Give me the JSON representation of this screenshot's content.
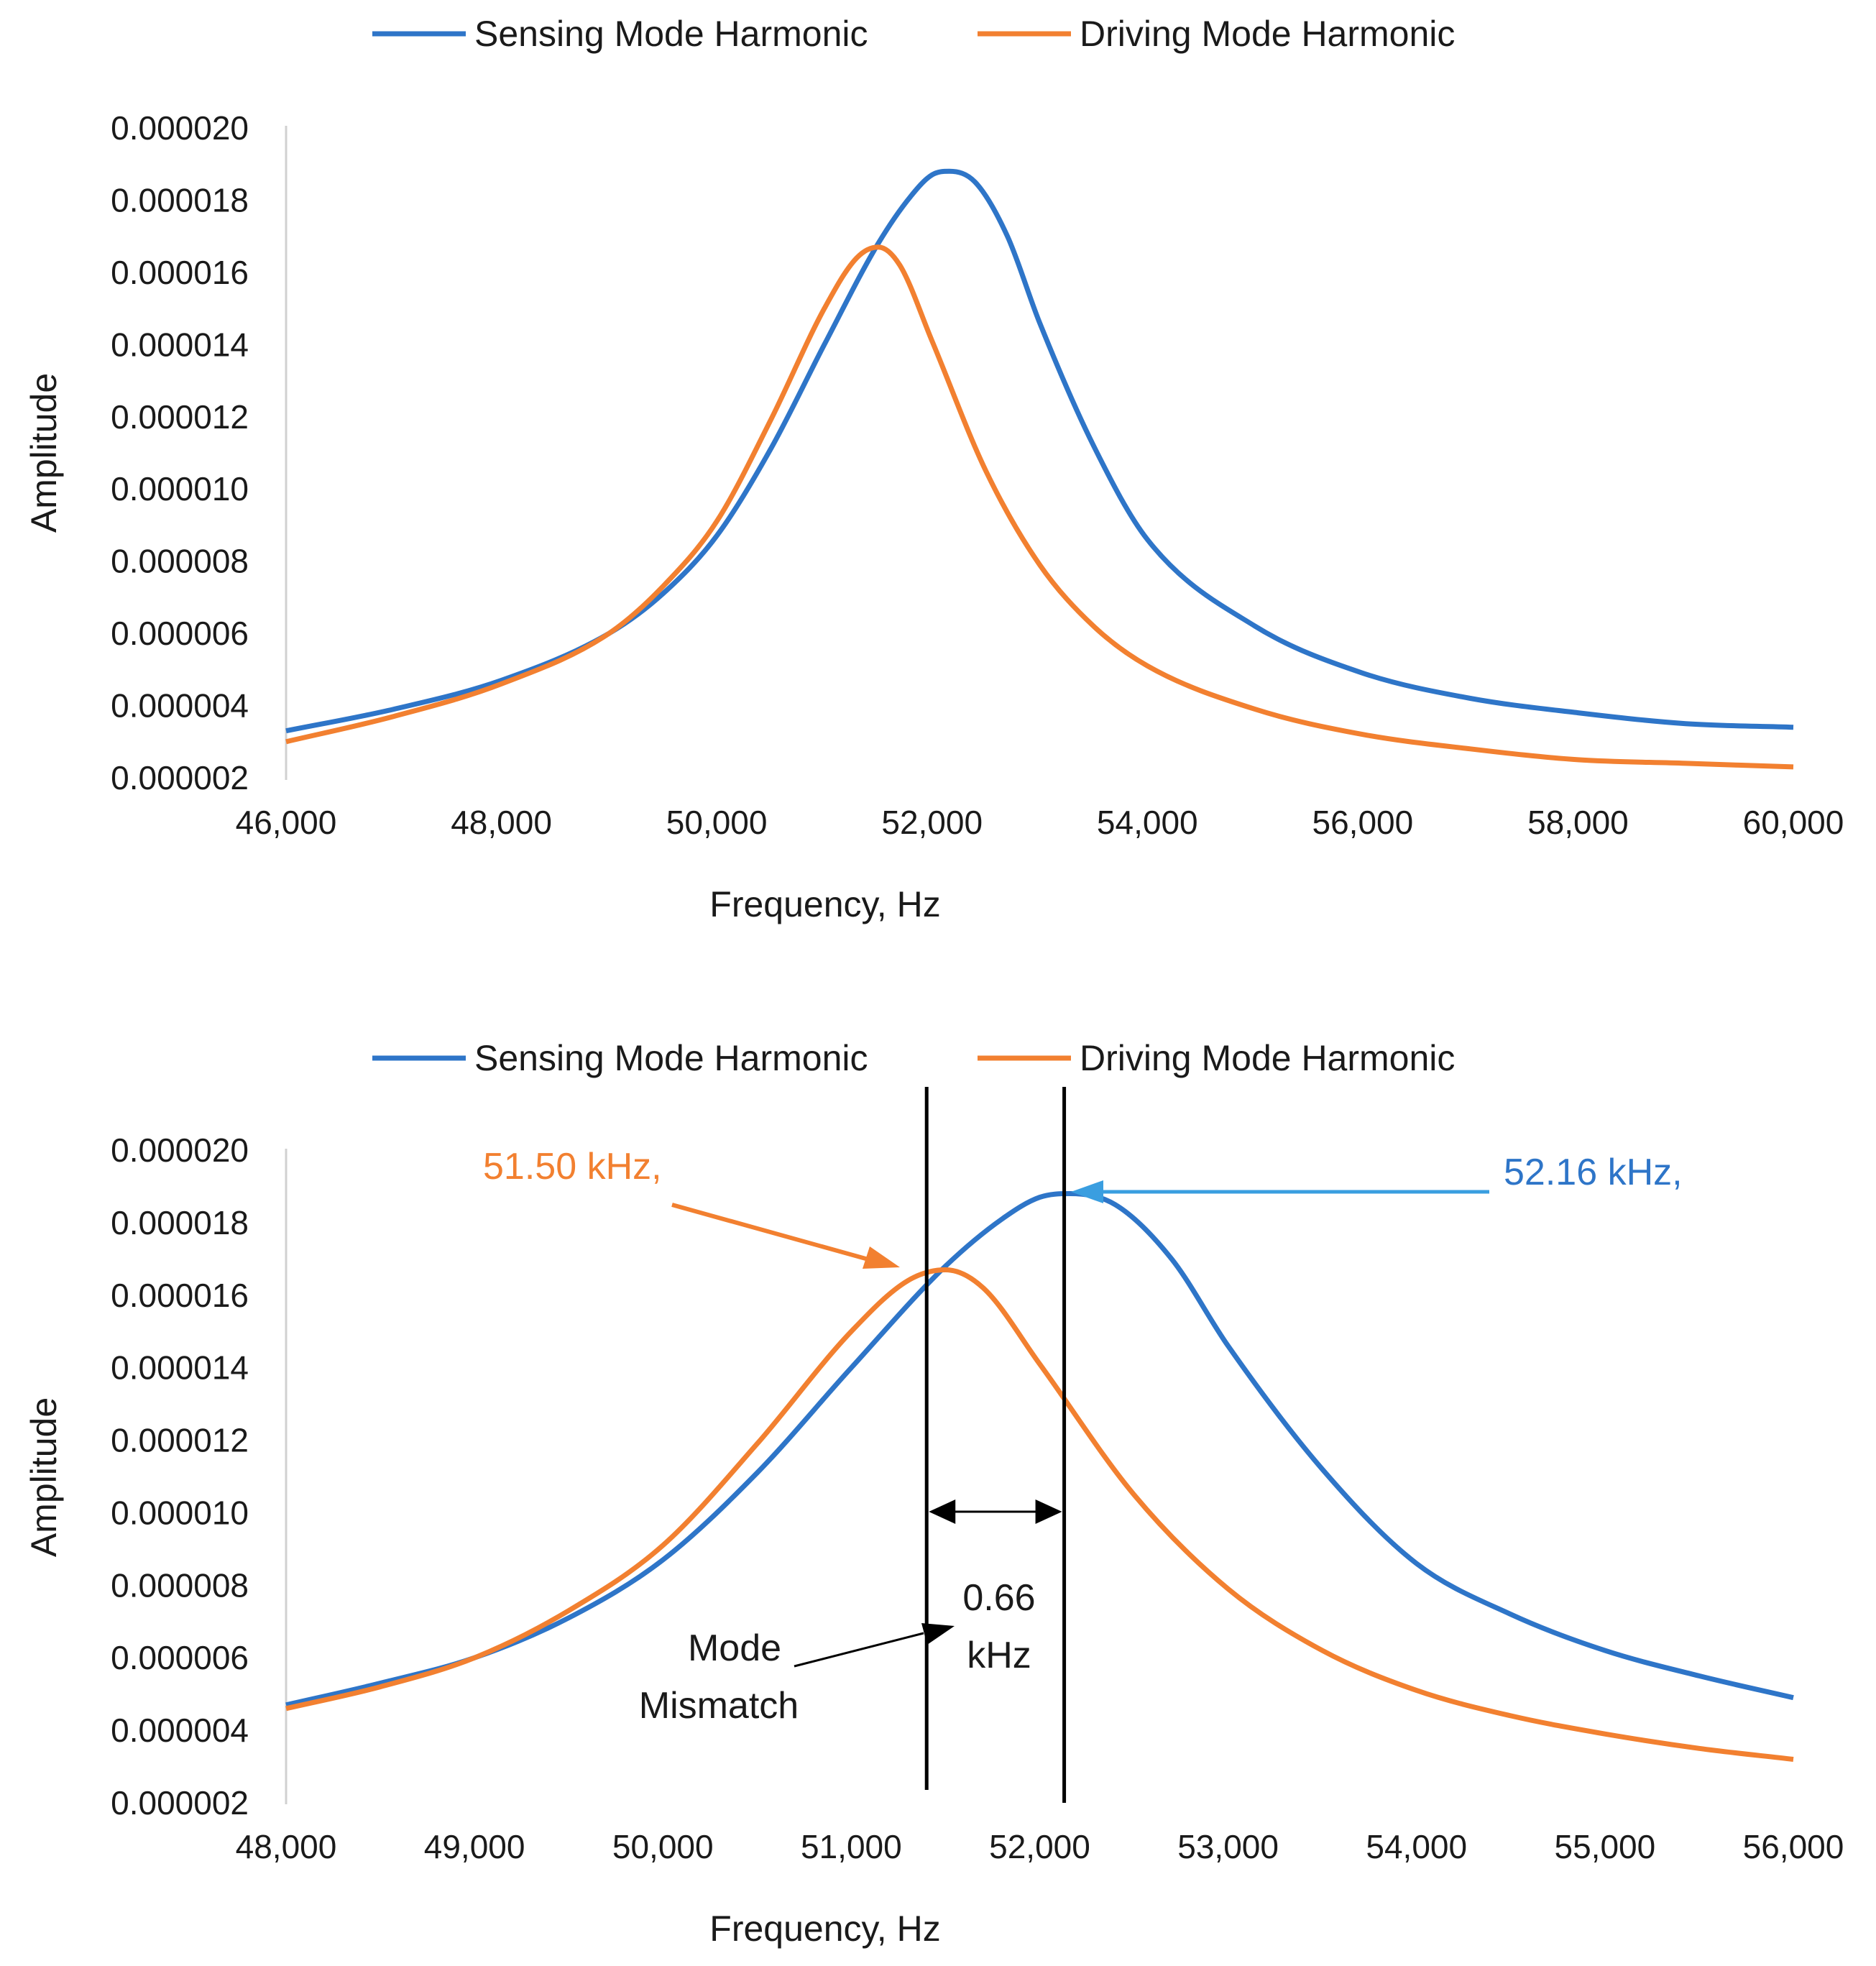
{
  "colors": {
    "sensing": "#2e75c8",
    "driving": "#f28030",
    "annotation_blue": "#2e75c8",
    "arrow_blue": "#3a9ee0",
    "black": "#000000"
  },
  "chart_data": [
    {
      "type": "line",
      "title": "",
      "xlabel": "Frequency, Hz",
      "ylabel": "Amplitude",
      "xlim": [
        46000,
        60000
      ],
      "ylim": [
        2e-06,
        2e-05
      ],
      "x_ticks": [
        46000,
        48000,
        50000,
        52000,
        54000,
        56000,
        58000,
        60000
      ],
      "x_tick_labels": [
        "46,000",
        "48,000",
        "50,000",
        "52,000",
        "54,000",
        "56,000",
        "58,000",
        "60,000"
      ],
      "y_ticks": [
        2e-06,
        4e-06,
        6e-06,
        8e-06,
        1e-05,
        1.2e-05,
        1.4e-05,
        1.6e-05,
        1.8e-05,
        2e-05
      ],
      "y_tick_labels": [
        "0.000002",
        "0.000004",
        "0.000006",
        "0.000008",
        "0.000010",
        "0.000012",
        "0.000014",
        "0.000016",
        "0.000018",
        "0.000020"
      ],
      "legend_position": "top",
      "series": [
        {
          "name": "Sensing Mode Harmonic",
          "x": [
            46000,
            47000,
            48000,
            49000,
            49500,
            50000,
            50500,
            51000,
            51500,
            51800,
            52000,
            52160,
            52400,
            52700,
            53000,
            53500,
            54000,
            55000,
            56000,
            57000,
            58000,
            59000,
            60000
          ],
          "values": [
            3.3e-06,
            3.9e-06,
            4.7e-06,
            6e-06,
            7.1e-06,
            8.7e-06,
            1.11e-05,
            1.4e-05,
            1.68e-05,
            1.81e-05,
            1.87e-05,
            1.88e-05,
            1.85e-05,
            1.7e-05,
            1.46e-05,
            1.12e-05,
            8.6e-06,
            6.2e-06,
            4.9e-06,
            4.2e-06,
            3.8e-06,
            3.5e-06,
            3.4e-06
          ]
        },
        {
          "name": "Driving Mode Harmonic",
          "x": [
            46000,
            47000,
            48000,
            49000,
            49500,
            50000,
            50500,
            51000,
            51300,
            51500,
            51700,
            52000,
            52500,
            53000,
            53500,
            54000,
            55000,
            56000,
            57000,
            58000,
            59000,
            60000
          ],
          "values": [
            3e-06,
            3.7e-06,
            4.6e-06,
            6e-06,
            7.3e-06,
            9.1e-06,
            1.19e-05,
            1.5e-05,
            1.64e-05,
            1.67e-05,
            1.62e-05,
            1.41e-05,
            1.05e-05,
            7.9e-06,
            6.2e-06,
            5.1e-06,
            3.9e-06,
            3.2e-06,
            2.8e-06,
            2.5e-06,
            2.4e-06,
            2.3e-06
          ]
        }
      ],
      "annotations": []
    },
    {
      "type": "line",
      "title": "",
      "xlabel": "Frequency, Hz",
      "ylabel": "Amplitude",
      "xlim": [
        48000,
        56000
      ],
      "ylim": [
        2e-06,
        2e-05
      ],
      "x_ticks": [
        48000,
        49000,
        50000,
        51000,
        52000,
        53000,
        54000,
        55000,
        56000
      ],
      "x_tick_labels": [
        "48,000",
        "49,000",
        "50,000",
        "51,000",
        "52,000",
        "53,000",
        "54,000",
        "55,000",
        "56,000"
      ],
      "y_ticks": [
        2e-06,
        4e-06,
        6e-06,
        8e-06,
        1e-05,
        1.2e-05,
        1.4e-05,
        1.6e-05,
        1.8e-05,
        2e-05
      ],
      "y_tick_labels": [
        "0.000002",
        "0.000004",
        "0.000006",
        "0.000008",
        "0.000010",
        "0.000012",
        "0.000014",
        "0.000016",
        "0.000018",
        "0.000020"
      ],
      "legend_position": "top",
      "series": [
        {
          "name": "Sensing Mode Harmonic",
          "x": [
            48000,
            48500,
            49000,
            49500,
            50000,
            50500,
            51000,
            51500,
            51800,
            52000,
            52160,
            52400,
            52700,
            53000,
            53500,
            54000,
            54500,
            55000,
            55500,
            56000
          ],
          "values": [
            4.7e-06,
            5.3e-06,
            6e-06,
            7.1e-06,
            8.7e-06,
            1.11e-05,
            1.4e-05,
            1.68e-05,
            1.81e-05,
            1.87e-05,
            1.88e-05,
            1.85e-05,
            1.7e-05,
            1.46e-05,
            1.12e-05,
            8.6e-06,
            7.2e-06,
            6.2e-06,
            5.5e-06,
            4.9e-06
          ]
        },
        {
          "name": "Driving Mode Harmonic",
          "x": [
            48000,
            48500,
            49000,
            49500,
            50000,
            50500,
            51000,
            51300,
            51500,
            51700,
            52000,
            52500,
            53000,
            53500,
            54000,
            54500,
            55000,
            55500,
            56000
          ],
          "values": [
            4.6e-06,
            5.2e-06,
            6e-06,
            7.3e-06,
            9.1e-06,
            1.19e-05,
            1.5e-05,
            1.64e-05,
            1.67e-05,
            1.62e-05,
            1.41e-05,
            1.05e-05,
            7.9e-06,
            6.2e-06,
            5.1e-06,
            4.4e-06,
            3.9e-06,
            3.5e-06,
            3.2e-06
          ]
        }
      ],
      "vlines": [
        51400,
        52130
      ],
      "annotations": {
        "driving_peak_label": "51.50 kHz,",
        "sensing_peak_label": "52.16 kHz,",
        "gap_value": "0.66",
        "gap_unit": "kHz",
        "mismatch_line1": "Mode",
        "mismatch_line2": "Mismatch"
      }
    }
  ]
}
